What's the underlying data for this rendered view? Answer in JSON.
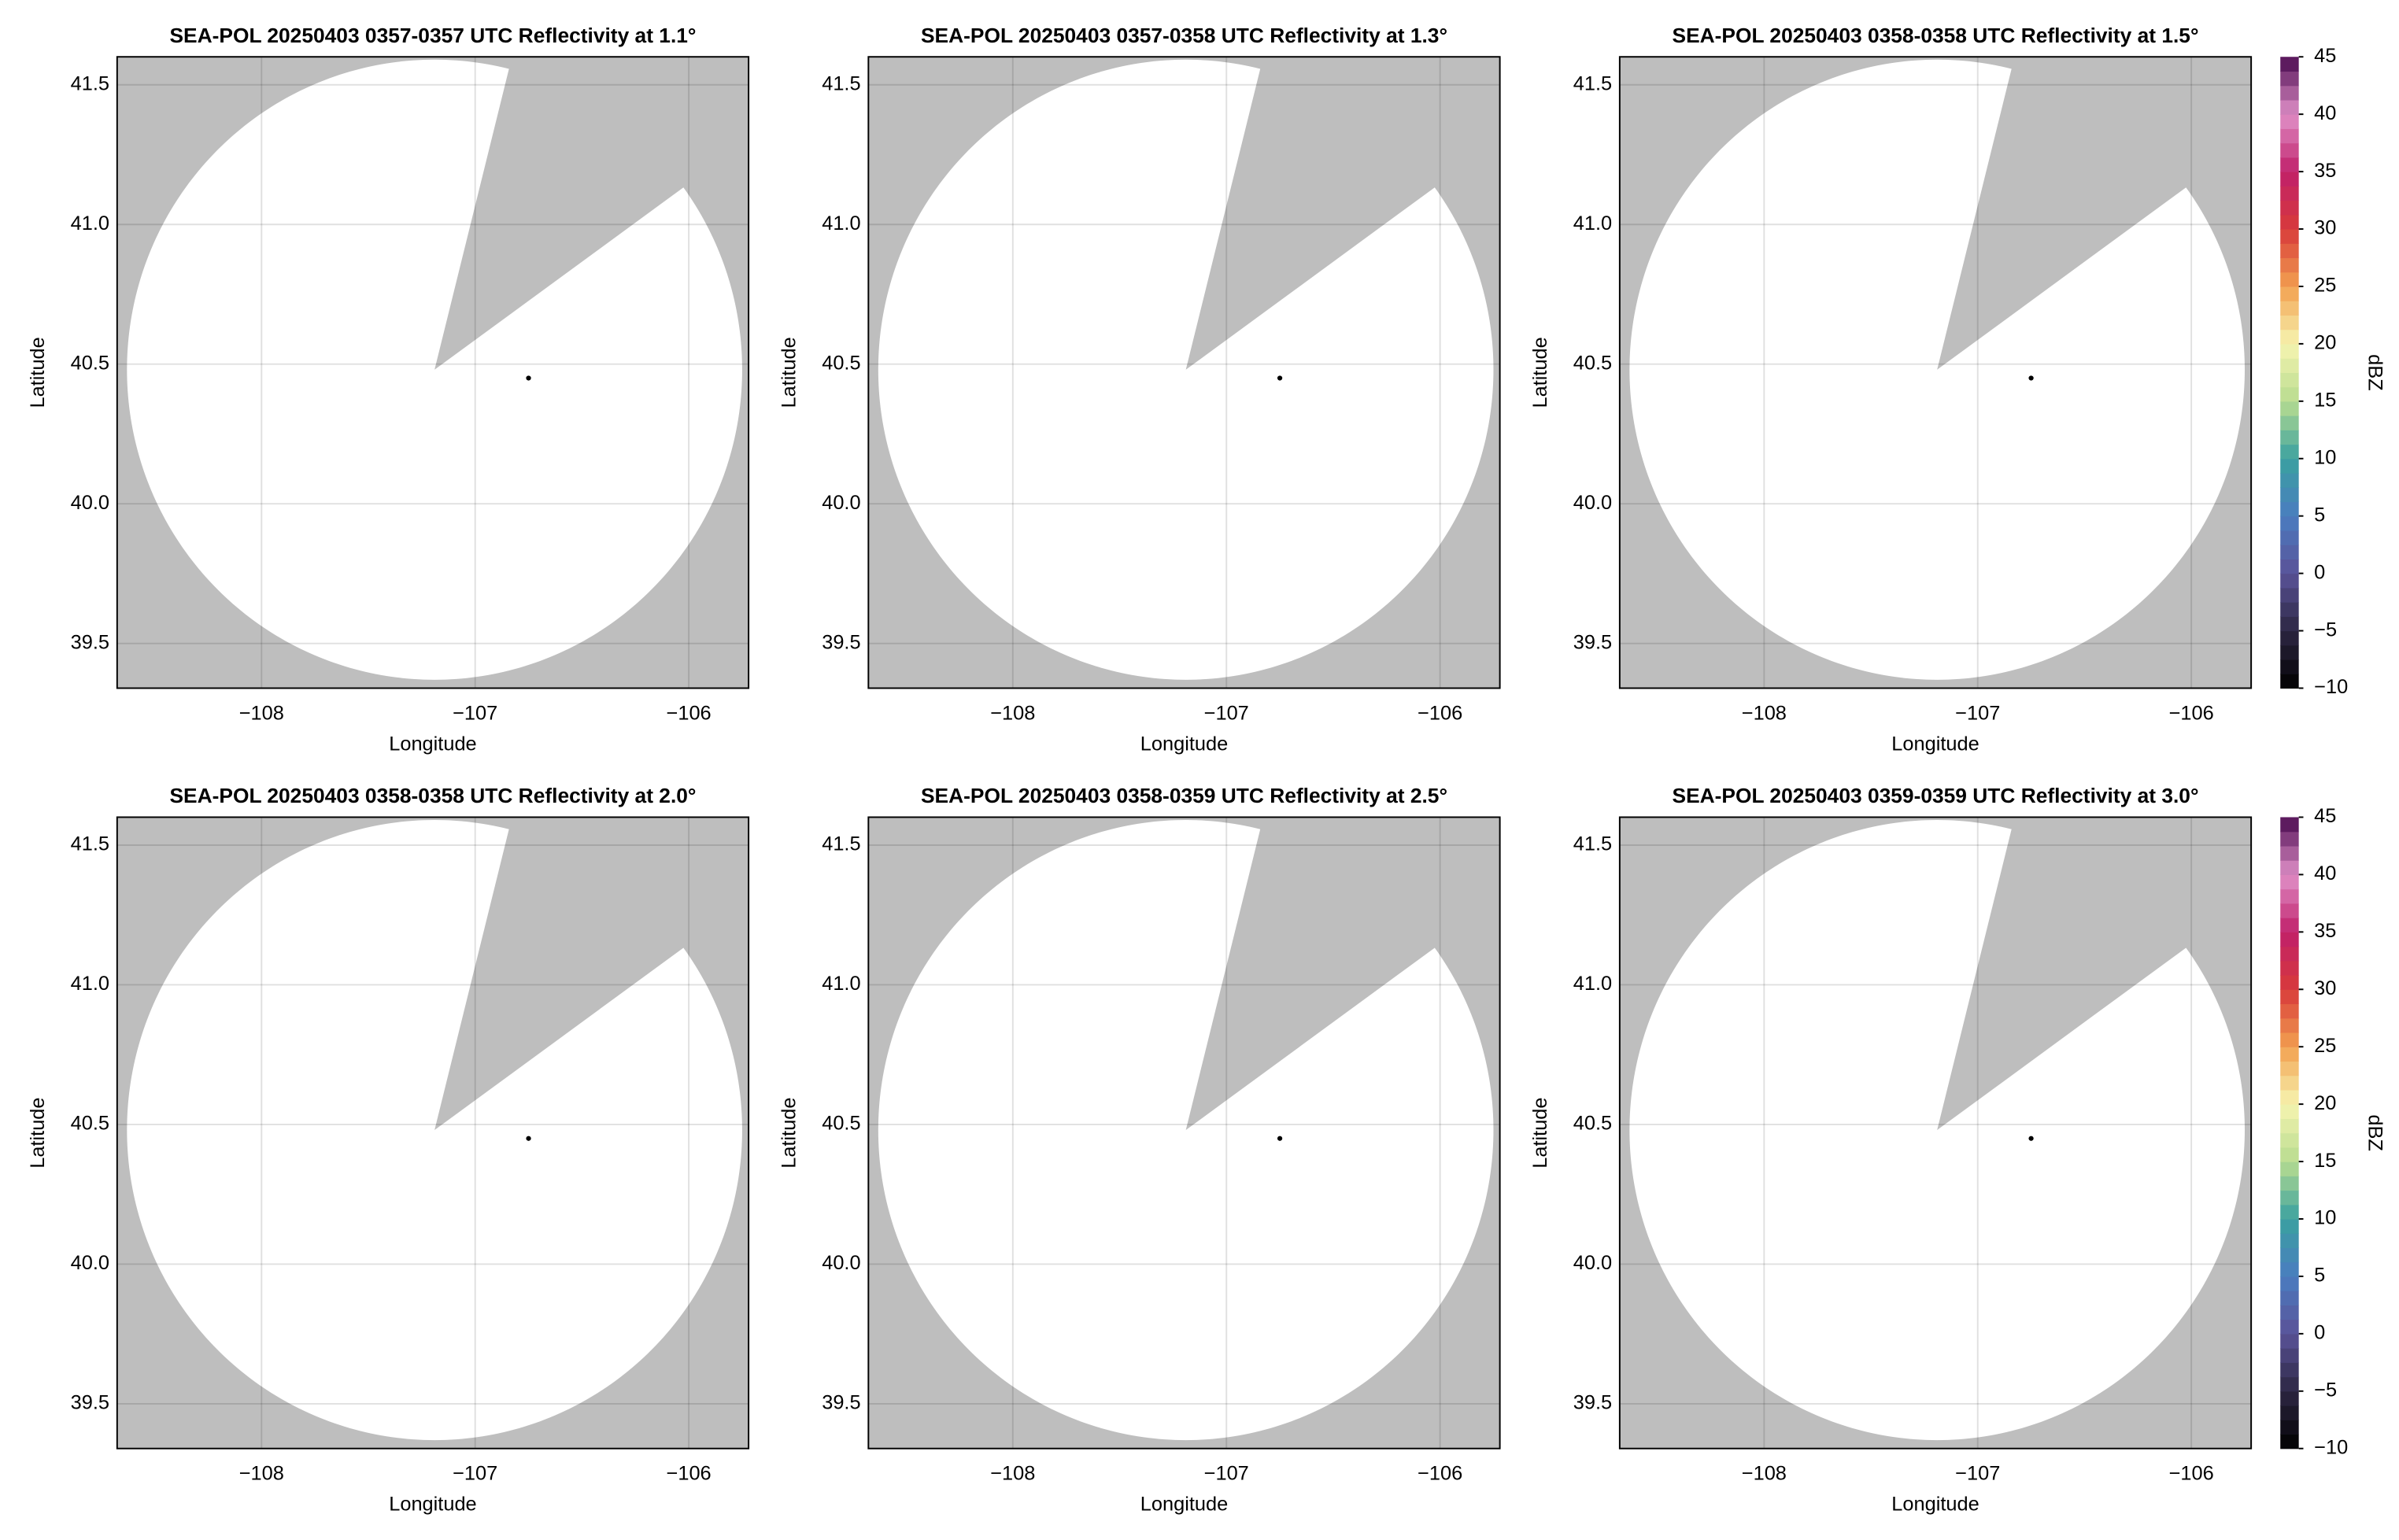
{
  "chart_data": [
    {
      "type": "ppi",
      "title": "SEA-POL 20250403 0357-0357 UTC Reflectivity at 1.1°",
      "xlabel": "Longitude",
      "ylabel": "Latitude",
      "xlim": [
        -108.676,
        -105.72
      ],
      "ylim": [
        39.34,
        41.6
      ],
      "xticks": [
        {
          "value": -108,
          "label": "−108"
        },
        {
          "value": -107,
          "label": "−107"
        },
        {
          "value": -106,
          "label": "−106"
        }
      ],
      "yticks": [
        39.5,
        {
          "value": 40,
          "label": "40.0"
        },
        40.5,
        {
          "value": 41,
          "label": "41.0"
        },
        41.5
      ],
      "grid": true,
      "background_color": "#bebebe",
      "coverage_color": "#ffffff",
      "coverage": {
        "center": [
          -107.19,
          40.48
        ],
        "radius_lon": 1.44,
        "radius_lat": 1.11,
        "blocked_azimuths": [
          14,
          54
        ]
      },
      "site": [
        -106.75,
        40.45
      ]
    },
    {
      "type": "ppi",
      "title": "SEA-POL 20250403 0357-0358 UTC Reflectivity at 1.3°",
      "xlabel": "Longitude",
      "ylabel": "Latitude",
      "xlim": [
        -108.676,
        -105.72
      ],
      "ylim": [
        39.34,
        41.6
      ],
      "xticks": [
        {
          "value": -108,
          "label": "−108"
        },
        {
          "value": -107,
          "label": "−107"
        },
        {
          "value": -106,
          "label": "−106"
        }
      ],
      "yticks": [
        39.5,
        {
          "value": 40,
          "label": "40.0"
        },
        40.5,
        {
          "value": 41,
          "label": "41.0"
        },
        41.5
      ],
      "grid": true,
      "background_color": "#bebebe",
      "coverage_color": "#ffffff",
      "coverage": {
        "center": [
          -107.19,
          40.48
        ],
        "radius_lon": 1.44,
        "radius_lat": 1.11,
        "blocked_azimuths": [
          14,
          54
        ]
      },
      "site": [
        -106.75,
        40.45
      ]
    },
    {
      "type": "ppi",
      "title": "SEA-POL 20250403 0358-0358 UTC Reflectivity at 1.5°",
      "xlabel": "Longitude",
      "ylabel": "Latitude",
      "xlim": [
        -108.676,
        -105.72
      ],
      "ylim": [
        39.34,
        41.6
      ],
      "xticks": [
        {
          "value": -108,
          "label": "−108"
        },
        {
          "value": -107,
          "label": "−107"
        },
        {
          "value": -106,
          "label": "−106"
        }
      ],
      "yticks": [
        39.5,
        {
          "value": 40,
          "label": "40.0"
        },
        40.5,
        {
          "value": 41,
          "label": "41.0"
        },
        41.5
      ],
      "grid": true,
      "background_color": "#bebebe",
      "coverage_color": "#ffffff",
      "coverage": {
        "center": [
          -107.19,
          40.48
        ],
        "radius_lon": 1.44,
        "radius_lat": 1.11,
        "blocked_azimuths": [
          14,
          54
        ]
      },
      "site": [
        -106.75,
        40.45
      ],
      "colorbar": {
        "label": "dBZ",
        "lim": [
          -10,
          45
        ],
        "ticks": [
          {
            "value": -10,
            "label": "−10"
          },
          {
            "value": -5,
            "label": "−5"
          },
          0,
          5,
          10,
          15,
          20,
          25,
          30,
          35,
          40,
          45
        ],
        "colors": [
          "#000000",
          "#2c2642",
          "#5a5298",
          "#4a7cc0",
          "#3aa0a0",
          "#b8dc90",
          "#f6f4b0",
          "#f2a050",
          "#d83a3a",
          "#c0206a",
          "#e090c8",
          "#4a0a50"
        ]
      }
    },
    {
      "type": "ppi",
      "title": "SEA-POL 20250403 0358-0358 UTC Reflectivity at 2.0°",
      "xlabel": "Longitude",
      "ylabel": "Latitude",
      "xlim": [
        -108.676,
        -105.72
      ],
      "ylim": [
        39.34,
        41.6
      ],
      "xticks": [
        {
          "value": -108,
          "label": "−108"
        },
        {
          "value": -107,
          "label": "−107"
        },
        {
          "value": -106,
          "label": "−106"
        }
      ],
      "yticks": [
        39.5,
        {
          "value": 40,
          "label": "40.0"
        },
        40.5,
        {
          "value": 41,
          "label": "41.0"
        },
        41.5
      ],
      "grid": true,
      "background_color": "#bebebe",
      "coverage_color": "#ffffff",
      "coverage": {
        "center": [
          -107.19,
          40.48
        ],
        "radius_lon": 1.44,
        "radius_lat": 1.11,
        "blocked_azimuths": [
          14,
          54
        ]
      },
      "site": [
        -106.75,
        40.45
      ]
    },
    {
      "type": "ppi",
      "title": "SEA-POL 20250403 0358-0359 UTC Reflectivity at 2.5°",
      "xlabel": "Longitude",
      "ylabel": "Latitude",
      "xlim": [
        -108.676,
        -105.72
      ],
      "ylim": [
        39.34,
        41.6
      ],
      "xticks": [
        {
          "value": -108,
          "label": "−108"
        },
        {
          "value": -107,
          "label": "−107"
        },
        {
          "value": -106,
          "label": "−106"
        }
      ],
      "yticks": [
        39.5,
        {
          "value": 40,
          "label": "40.0"
        },
        40.5,
        {
          "value": 41,
          "label": "41.0"
        },
        41.5
      ],
      "grid": true,
      "background_color": "#bebebe",
      "coverage_color": "#ffffff",
      "coverage": {
        "center": [
          -107.19,
          40.48
        ],
        "radius_lon": 1.44,
        "radius_lat": 1.11,
        "blocked_azimuths": [
          14,
          54
        ]
      },
      "site": [
        -106.75,
        40.45
      ]
    },
    {
      "type": "ppi",
      "title": "SEA-POL 20250403 0359-0359 UTC Reflectivity at 3.0°",
      "xlabel": "Longitude",
      "ylabel": "Latitude",
      "xlim": [
        -108.676,
        -105.72
      ],
      "ylim": [
        39.34,
        41.6
      ],
      "xticks": [
        {
          "value": -108,
          "label": "−108"
        },
        {
          "value": -107,
          "label": "−107"
        },
        {
          "value": -106,
          "label": "−106"
        }
      ],
      "yticks": [
        39.5,
        {
          "value": 40,
          "label": "40.0"
        },
        40.5,
        {
          "value": 41,
          "label": "41.0"
        },
        41.5
      ],
      "grid": true,
      "background_color": "#bebebe",
      "coverage_color": "#ffffff",
      "coverage": {
        "center": [
          -107.19,
          40.48
        ],
        "radius_lon": 1.44,
        "radius_lat": 1.11,
        "blocked_azimuths": [
          14,
          54
        ]
      },
      "site": [
        -106.75,
        40.45
      ],
      "colorbar": {
        "label": "dBZ",
        "lim": [
          -10,
          45
        ],
        "ticks": [
          {
            "value": -10,
            "label": "−10"
          },
          {
            "value": -5,
            "label": "−5"
          },
          0,
          5,
          10,
          15,
          20,
          25,
          30,
          35,
          40,
          45
        ],
        "colors": [
          "#000000",
          "#2c2642",
          "#5a5298",
          "#4a7cc0",
          "#3aa0a0",
          "#b8dc90",
          "#f6f4b0",
          "#f2a050",
          "#d83a3a",
          "#c0206a",
          "#e090c8",
          "#4a0a50"
        ]
      }
    }
  ]
}
